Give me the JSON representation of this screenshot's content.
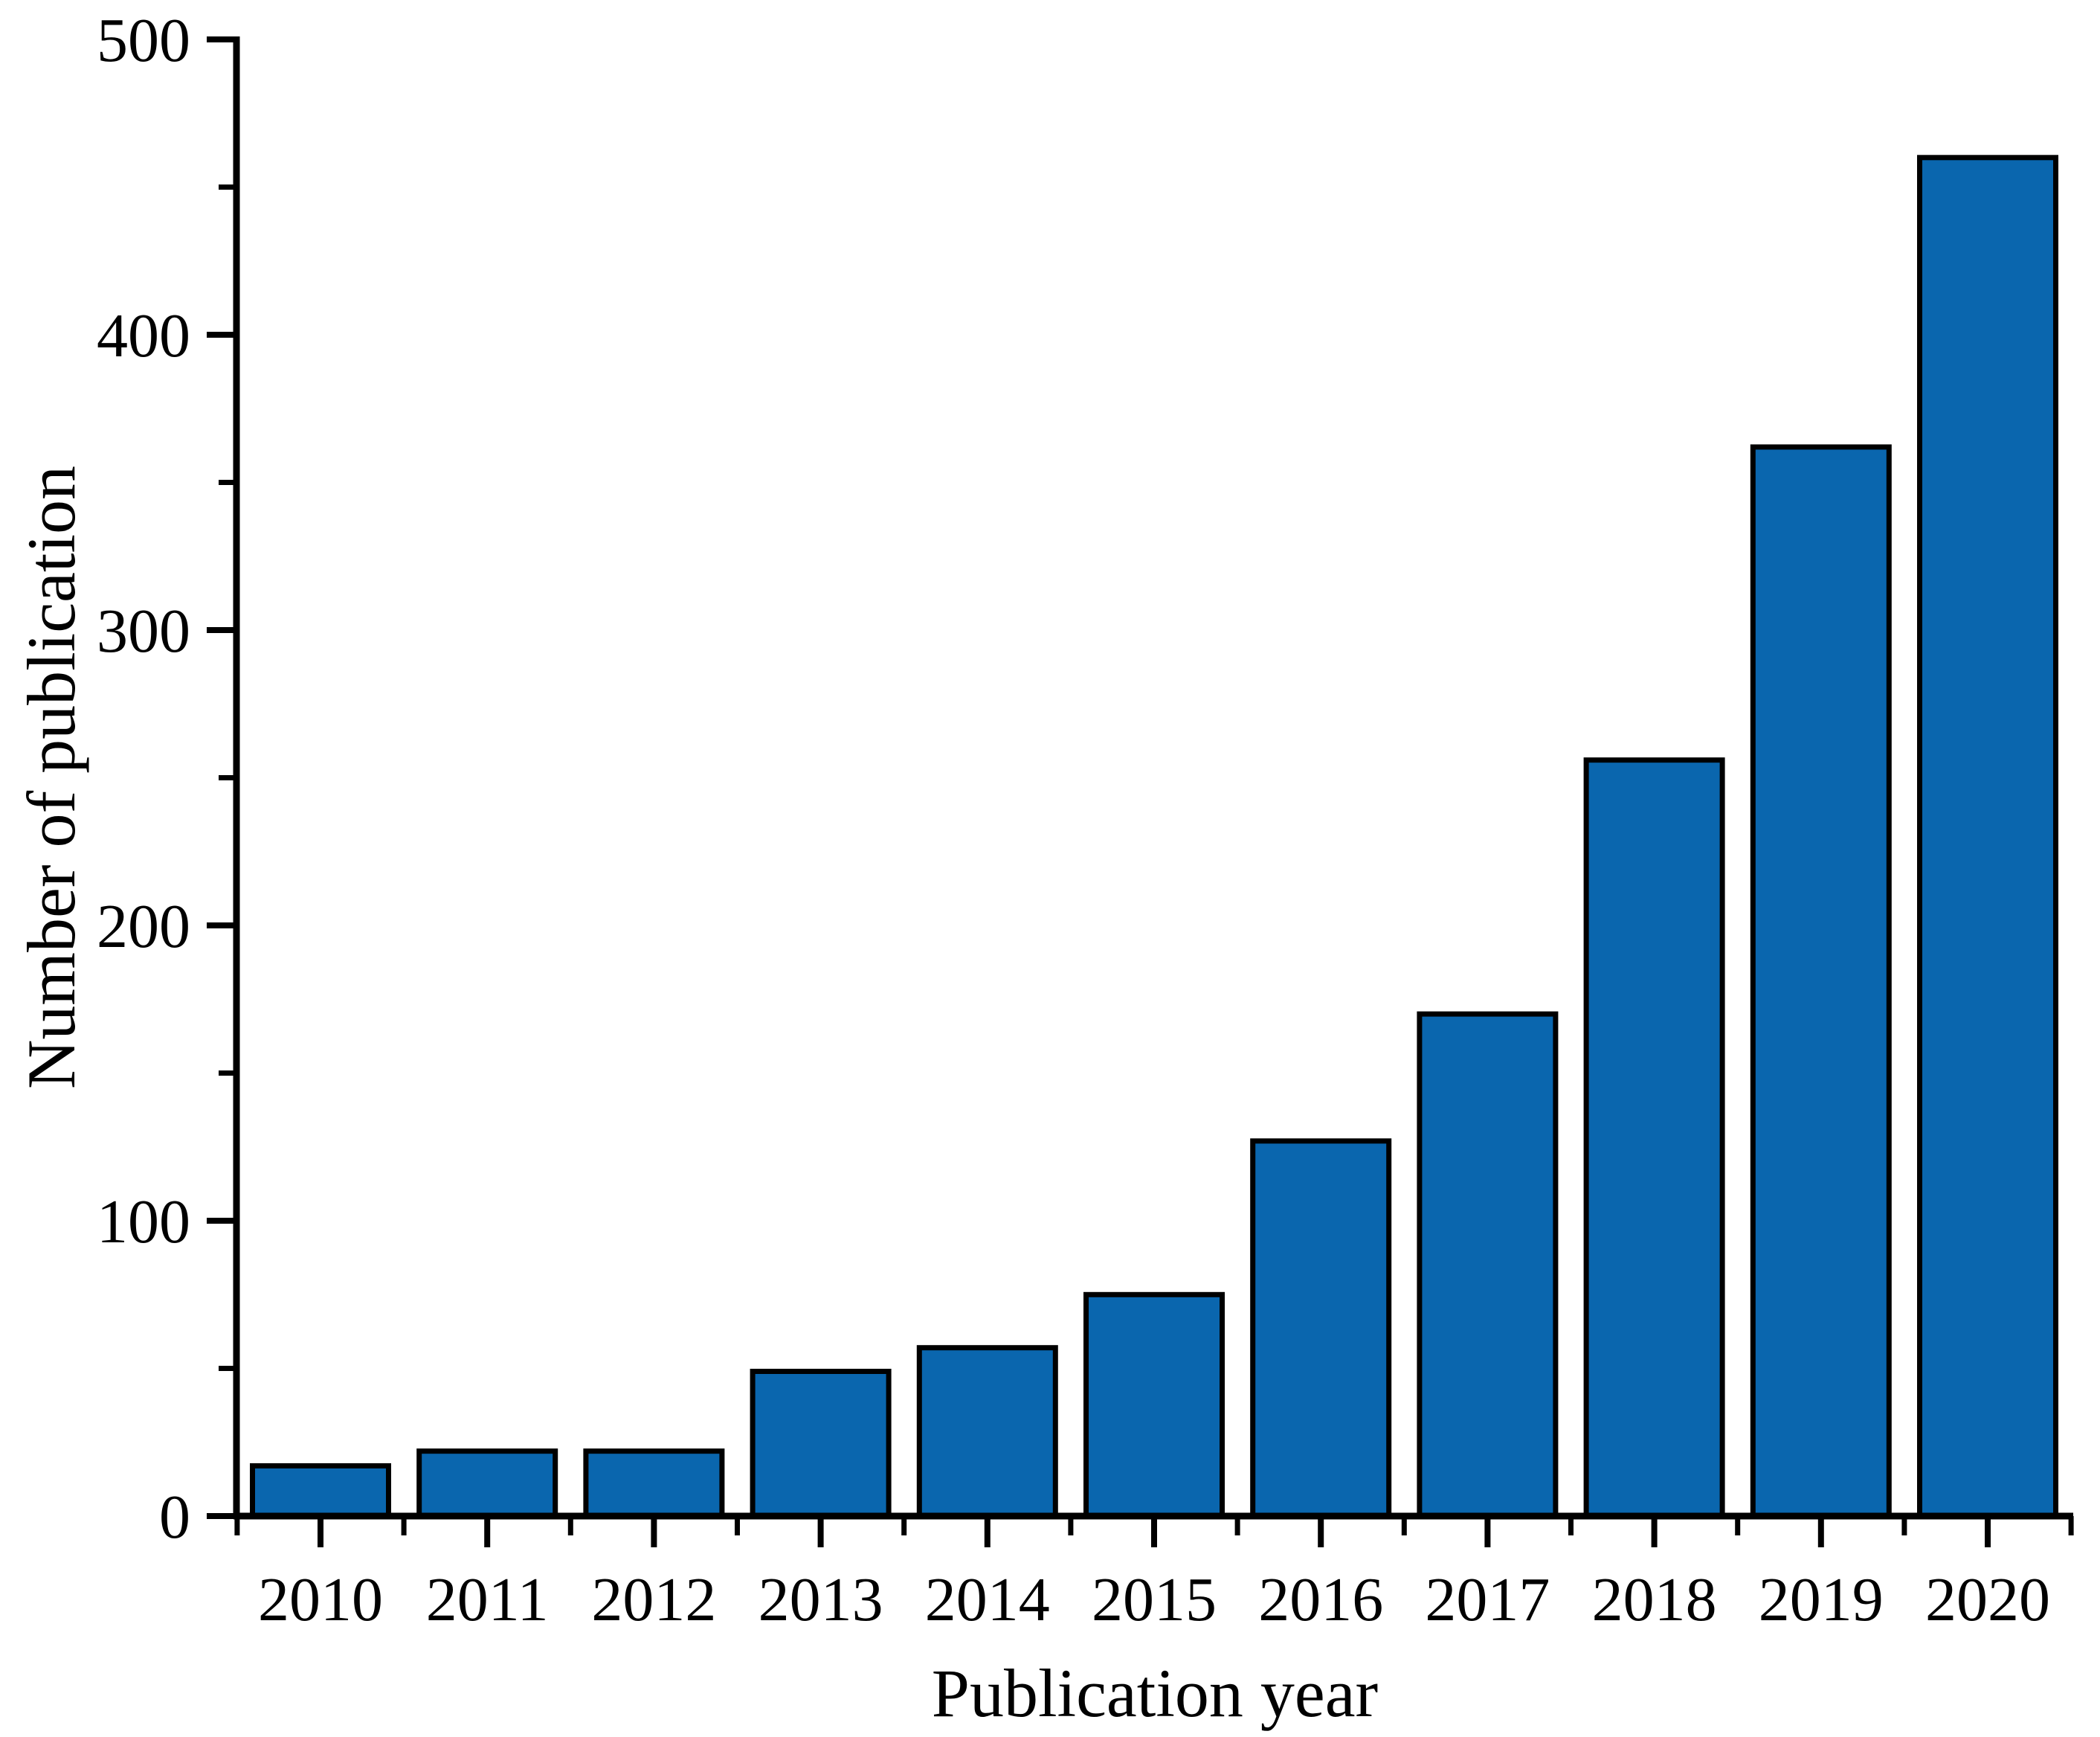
{
  "chart_data": {
    "type": "bar",
    "title": "",
    "xlabel": "Publication year",
    "ylabel": "Number of publication",
    "categories": [
      "2010",
      "2011",
      "2012",
      "2013",
      "2014",
      "2015",
      "2016",
      "2017",
      "2018",
      "2019",
      "2020"
    ],
    "values": [
      17,
      22,
      22,
      49,
      57,
      75,
      127,
      170,
      256,
      362,
      460
    ],
    "ylim": [
      0,
      500
    ],
    "yticks_major": [
      0,
      100,
      200,
      300,
      400,
      500
    ],
    "yticks_minor": [
      50,
      150,
      250,
      350,
      450
    ],
    "xticks_minor_at_category_boundaries": true,
    "grid": false,
    "legend": null,
    "colors": {
      "bar_fill": "#0a66ae",
      "bar_edge": "#000000",
      "axis": "#000000",
      "text": "#000000",
      "background": "#ffffff"
    }
  }
}
